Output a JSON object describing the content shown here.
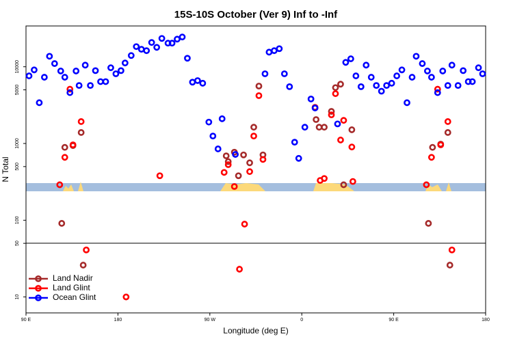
{
  "chart_data": {
    "type": "scatter",
    "title": "15S-10S October (Ver 9)   Inf to -Inf",
    "x_label": "Longitude (deg E)",
    "y_label": "N Total",
    "xlim": [
      90,
      540
    ],
    "xticks": [
      {
        "value": 90,
        "label": "90 E"
      },
      180,
      {
        "value": 270,
        "label": "90 W"
      },
      {
        "value": 360,
        "label": "0"
      },
      {
        "value": 450,
        "label": "90 E"
      },
      {
        "value": 540,
        "label": "180"
      }
    ],
    "ylim": [
      6.2,
      34000
    ],
    "log_y": true,
    "yticks": [
      10,
      50,
      100,
      500,
      1000,
      5000,
      10000
    ],
    "legend": "lower left",
    "series": [
      {
        "name": "Land Nadir",
        "color": "#a52a2a",
        "x": [
          125,
          128,
          136,
          144,
          146,
          286,
          288,
          294,
          298,
          303,
          309,
          313,
          318,
          322,
          374,
          377,
          382,
          389,
          393,
          398,
          401,
          409,
          484,
          488,
          496,
          503,
          505
        ],
        "values": [
          91,
          890,
          940,
          1390,
          26,
          690,
          580,
          770,
          380,
          710,
          560,
          1630,
          5600,
          710,
          2050,
          1630,
          1630,
          2620,
          5350,
          5930,
          290,
          1510,
          91,
          890,
          980,
          1390,
          26
        ]
      },
      {
        "name": "Land Glint",
        "color": "#ff0000",
        "x": [
          123,
          128,
          133,
          136,
          144,
          149,
          188,
          221,
          284,
          288,
          294,
          299,
          304,
          309,
          313,
          318,
          322,
          373,
          378,
          382,
          389,
          393,
          398,
          401,
          409,
          410,
          482,
          487,
          493,
          496,
          503,
          507
        ],
        "values": [
          290,
          660,
          5100,
          960,
          1930,
          41,
          10,
          380,
          420,
          530,
          275,
          23,
          89,
          430,
          1250,
          4200,
          620,
          2960,
          330,
          350,
          2360,
          4460,
          1110,
          2000,
          900,
          320,
          290,
          660,
          5100,
          960,
          1930,
          41
        ]
      },
      {
        "name": "Ocean Glint",
        "color": "#0000ff",
        "x": [
          93,
          98,
          103,
          108,
          113,
          118,
          124,
          128,
          133,
          139,
          142,
          148,
          153,
          158,
          163,
          168,
          173,
          178,
          183,
          187,
          193,
          198,
          203,
          208,
          213,
          218,
          223,
          229,
          233,
          238,
          243,
          248,
          253,
          258,
          263,
          269,
          273,
          278,
          282,
          295,
          324,
          328,
          333,
          338,
          343,
          348,
          353,
          357,
          363,
          369,
          373,
          395,
          403,
          408,
          413,
          418,
          423,
          428,
          433,
          438,
          443,
          448,
          453,
          458,
          463,
          468,
          472,
          478,
          483,
          487,
          493,
          498,
          503,
          507,
          513,
          518,
          523,
          527,
          533,
          537
        ],
        "values": [
          7600,
          9100,
          3400,
          7300,
          13700,
          11000,
          8800,
          7300,
          4600,
          8800,
          5700,
          10500,
          5700,
          8900,
          6400,
          6400,
          9700,
          8100,
          8900,
          11200,
          14000,
          18300,
          16900,
          16200,
          20700,
          17900,
          23400,
          20300,
          20300,
          22900,
          24400,
          12900,
          6300,
          6600,
          6100,
          1900,
          1250,
          850,
          2100,
          720,
          8100,
          15500,
          16200,
          17200,
          8100,
          5500,
          1040,
          640,
          1630,
          3800,
          2900,
          1800,
          11400,
          12700,
          7600,
          5500,
          10500,
          7300,
          5700,
          4800,
          5700,
          6100,
          7600,
          9100,
          3400,
          7300,
          13700,
          11000,
          8800,
          7300,
          4600,
          8800,
          5700,
          10500,
          5700,
          8900,
          6400,
          6400,
          9700,
          8100
        ]
      }
    ]
  }
}
